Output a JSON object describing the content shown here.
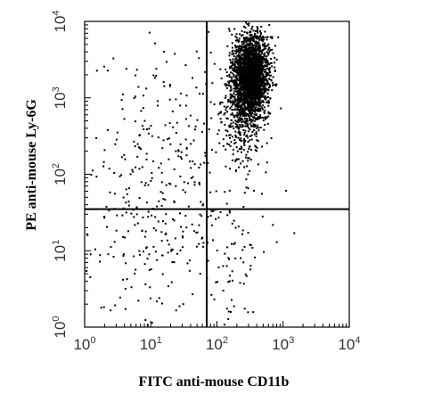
{
  "chart_data": {
    "type": "scatter",
    "x_scale": "log",
    "y_scale": "log",
    "xlabel": "FITC anti-mouse CD11b",
    "ylabel": "PE anti-mouse Ly-6G",
    "xlim": [
      1,
      10000
    ],
    "ylim": [
      1,
      10000
    ],
    "x_ticks": [
      {
        "base": "10",
        "exp": "0",
        "value": 1
      },
      {
        "base": "10",
        "exp": "1",
        "value": 10
      },
      {
        "base": "10",
        "exp": "2",
        "value": 100
      },
      {
        "base": "10",
        "exp": "3",
        "value": 1000
      },
      {
        "base": "10",
        "exp": "4",
        "value": 10000
      }
    ],
    "y_ticks": [
      {
        "base": "10",
        "exp": "0",
        "value": 1
      },
      {
        "base": "10",
        "exp": "1",
        "value": 10
      },
      {
        "base": "10",
        "exp": "2",
        "value": 100
      },
      {
        "base": "10",
        "exp": "3",
        "value": 1000
      },
      {
        "base": "10",
        "exp": "4",
        "value": 10000
      }
    ],
    "quadrant_gates": {
      "x": 70,
      "y": 35
    },
    "point_color": "#000000",
    "populations": [
      {
        "center": [
          330,
          1900
        ],
        "spread_decades": [
          0.13,
          0.27
        ],
        "count": 2600
      },
      {
        "center": [
          240,
          600
        ],
        "spread_decades": [
          0.14,
          0.35
        ],
        "count": 320
      },
      {
        "center": [
          25,
          200
        ],
        "spread_decades": [
          0.65,
          0.75
        ],
        "count": 260
      },
      {
        "center": [
          12,
          15
        ],
        "spread_decades": [
          0.6,
          0.55
        ],
        "count": 160
      },
      {
        "center": [
          200,
          6
        ],
        "spread_decades": [
          0.18,
          0.35
        ],
        "count": 45
      }
    ]
  }
}
